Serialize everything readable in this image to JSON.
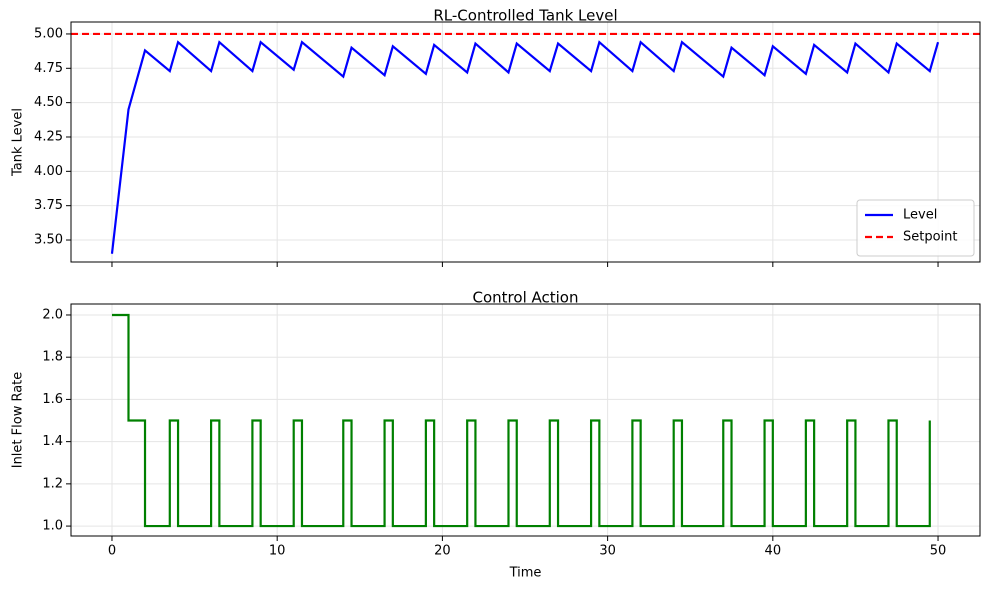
{
  "chart_data": [
    {
      "type": "line",
      "title": "RL-Controlled Tank Level",
      "y_label": "Tank Level",
      "x": [
        0,
        1,
        2,
        3.5,
        4,
        6,
        6.5,
        8.5,
        9,
        11,
        11.5,
        14,
        14.5,
        16.5,
        17,
        19,
        19.5,
        21.5,
        22,
        24,
        24.5,
        26.5,
        27,
        29,
        29.5,
        31.5,
        32,
        34,
        34.5,
        37,
        37.5,
        39.5,
        40,
        42,
        42.5,
        44.5,
        45,
        47,
        47.5,
        49.5,
        50
      ],
      "series": [
        {
          "name": "Level",
          "color": "#0000ff",
          "values": [
            3.4,
            4.45,
            4.88,
            4.73,
            4.94,
            4.73,
            4.94,
            4.73,
            4.94,
            4.74,
            4.94,
            4.69,
            4.9,
            4.7,
            4.91,
            4.71,
            4.92,
            4.72,
            4.93,
            4.72,
            4.93,
            4.73,
            4.93,
            4.73,
            4.94,
            4.73,
            4.94,
            4.73,
            4.94,
            4.69,
            4.9,
            4.7,
            4.91,
            4.71,
            4.92,
            4.72,
            4.93,
            4.72,
            4.93,
            4.73,
            4.94
          ]
        }
      ],
      "hlines": [
        {
          "name": "Setpoint",
          "value": 5.0,
          "color": "#ff0000",
          "style": "dashed"
        }
      ],
      "xlim": [
        -2.48,
        52.54
      ],
      "ylim": [
        3.34,
        5.087
      ],
      "xticks": [
        0,
        10,
        20,
        30,
        40,
        50
      ],
      "yticks": [
        {
          "value": 3.5,
          "label": "3.50"
        },
        {
          "value": 3.75,
          "label": "3.75"
        },
        {
          "value": 4.0,
          "label": "4.00"
        },
        {
          "value": 4.25,
          "label": "4.25"
        },
        {
          "value": 4.5,
          "label": "4.50"
        },
        {
          "value": 4.75,
          "label": "4.75"
        },
        {
          "value": 5.0,
          "label": "5.00"
        }
      ],
      "grid": true,
      "legend": "lower right"
    },
    {
      "type": "step",
      "title": "Control Action",
      "x_label": "Time",
      "y_label": "Inlet Flow Rate",
      "x": [
        0,
        1,
        2,
        3.5,
        4,
        6,
        6.5,
        8.5,
        9,
        11,
        11.5,
        14,
        14.5,
        16.5,
        17,
        19,
        19.5,
        21.5,
        22,
        24,
        24.5,
        26.5,
        27,
        29,
        29.5,
        31.5,
        32,
        34,
        34.5,
        37,
        37.5,
        39.5,
        40,
        42,
        42.5,
        44.5,
        45,
        47,
        47.5,
        49.5
      ],
      "series": [
        {
          "color": "#008000",
          "values": [
            2.0,
            1.5,
            1.0,
            1.5,
            1.0,
            1.5,
            1.0,
            1.5,
            1.0,
            1.5,
            1.0,
            1.5,
            1.0,
            1.5,
            1.0,
            1.5,
            1.0,
            1.5,
            1.0,
            1.5,
            1.0,
            1.5,
            1.0,
            1.5,
            1.0,
            1.5,
            1.0,
            1.5,
            1.0,
            1.5,
            1.0,
            1.5,
            1.0,
            1.5,
            1.0,
            1.5,
            1.0,
            1.5,
            1.0,
            1.5
          ]
        }
      ],
      "xlim": [
        -2.48,
        52.54
      ],
      "ylim": [
        0.953,
        2.052
      ],
      "xticks": [
        0,
        10,
        20,
        30,
        40,
        50
      ],
      "yticks": [
        {
          "value": 1.0,
          "label": "1.0"
        },
        {
          "value": 1.2,
          "label": "1.2"
        },
        {
          "value": 1.4,
          "label": "1.4"
        },
        {
          "value": 1.6,
          "label": "1.6"
        },
        {
          "value": 1.8,
          "label": "1.8"
        },
        {
          "value": 2.0,
          "label": "2.0"
        }
      ],
      "grid": true
    }
  ]
}
